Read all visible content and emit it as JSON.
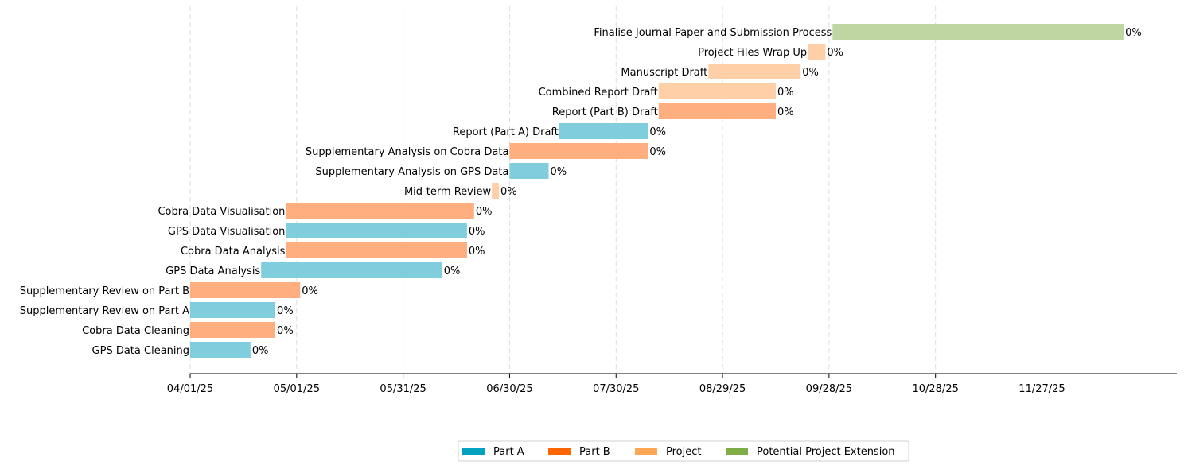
{
  "chart_data": {
    "type": "bar",
    "orientation": "horizontal-gantt",
    "title": "",
    "xlabel": "",
    "ylabel": "",
    "grid": "vertical dashed",
    "legend_position": "bottom-center",
    "x_axis": {
      "type": "date",
      "range": [
        "2025-04-01",
        "2026-01-04"
      ],
      "ticks": [
        {
          "date": "2025-04-01",
          "label": "04/01/25"
        },
        {
          "date": "2025-05-01",
          "label": "05/01/25"
        },
        {
          "date": "2025-05-31",
          "label": "05/31/25"
        },
        {
          "date": "2025-06-30",
          "label": "06/30/25"
        },
        {
          "date": "2025-07-30",
          "label": "07/30/25"
        },
        {
          "date": "2025-08-29",
          "label": "08/29/25"
        },
        {
          "date": "2025-09-28",
          "label": "09/28/25"
        },
        {
          "date": "2025-10-28",
          "label": "10/28/25"
        },
        {
          "date": "2025-11-27",
          "label": "11/27/25"
        }
      ]
    },
    "legend": [
      {
        "name": "Part A",
        "color": "#00a1c1"
      },
      {
        "name": "Part B",
        "color": "#ff6600"
      },
      {
        "name": "Project",
        "color": "#ffa556"
      },
      {
        "name": "Potential Project Extension",
        "color": "#7fae48"
      }
    ],
    "tasks": [
      {
        "name": "GPS Data Cleaning",
        "start": "2025-04-01",
        "end": "2025-04-18",
        "group": "Part A",
        "color": "#80cedd",
        "completion": "0%"
      },
      {
        "name": "Cobra Data Cleaning",
        "start": "2025-04-01",
        "end": "2025-04-25",
        "group": "Part B",
        "color": "#ffae80",
        "completion": "0%"
      },
      {
        "name": "Supplementary Review on Part A",
        "start": "2025-04-01",
        "end": "2025-04-25",
        "group": "Part A",
        "color": "#80cedd",
        "completion": "0%"
      },
      {
        "name": "Supplementary Review on Part B",
        "start": "2025-04-01",
        "end": "2025-05-02",
        "group": "Part B",
        "color": "#ffae80",
        "completion": "0%"
      },
      {
        "name": "GPS Data Analysis",
        "start": "2025-04-21",
        "end": "2025-06-11",
        "group": "Part A",
        "color": "#80cedd",
        "completion": "0%"
      },
      {
        "name": "Cobra Data Analysis",
        "start": "2025-04-28",
        "end": "2025-06-18",
        "group": "Part B",
        "color": "#ffae80",
        "completion": "0%"
      },
      {
        "name": "GPS Data Visualisation",
        "start": "2025-04-28",
        "end": "2025-06-18",
        "group": "Part A",
        "color": "#80cedd",
        "completion": "0%"
      },
      {
        "name": "Cobra Data Visualisation",
        "start": "2025-04-28",
        "end": "2025-06-20",
        "group": "Part B",
        "color": "#ffae80",
        "completion": "0%"
      },
      {
        "name": "Mid-term Review",
        "start": "2025-06-25",
        "end": "2025-06-27",
        "group": "Project",
        "color": "#ffd0a8",
        "completion": "0%"
      },
      {
        "name": "Supplementary Analysis on GPS Data",
        "start": "2025-06-30",
        "end": "2025-07-11",
        "group": "Part A",
        "color": "#80cedd",
        "completion": "0%"
      },
      {
        "name": "Supplementary Analysis on Cobra Data",
        "start": "2025-06-30",
        "end": "2025-08-08",
        "group": "Part B",
        "color": "#ffae80",
        "completion": "0%"
      },
      {
        "name": "Report (Part A) Draft",
        "start": "2025-07-14",
        "end": "2025-08-08",
        "group": "Part A",
        "color": "#80cedd",
        "completion": "0%"
      },
      {
        "name": "Report (Part B) Draft",
        "start": "2025-08-11",
        "end": "2025-09-13",
        "group": "Part B",
        "color": "#ffae80",
        "completion": "0%"
      },
      {
        "name": "Combined Report Draft",
        "start": "2025-08-11",
        "end": "2025-09-13",
        "group": "Project",
        "color": "#ffd0a8",
        "completion": "0%"
      },
      {
        "name": "Manuscript Draft",
        "start": "2025-08-25",
        "end": "2025-09-20",
        "group": "Project",
        "color": "#ffd0a8",
        "completion": "0%"
      },
      {
        "name": "Project Files Wrap Up",
        "start": "2025-09-22",
        "end": "2025-09-27",
        "group": "Project",
        "color": "#ffd0a8",
        "completion": "0%"
      },
      {
        "name": "Finalise Journal Paper and Submission Process",
        "start": "2025-09-29",
        "end": "2025-12-20",
        "group": "Potential Project Extension",
        "color": "#bfd6a3",
        "completion": "0%"
      }
    ]
  }
}
